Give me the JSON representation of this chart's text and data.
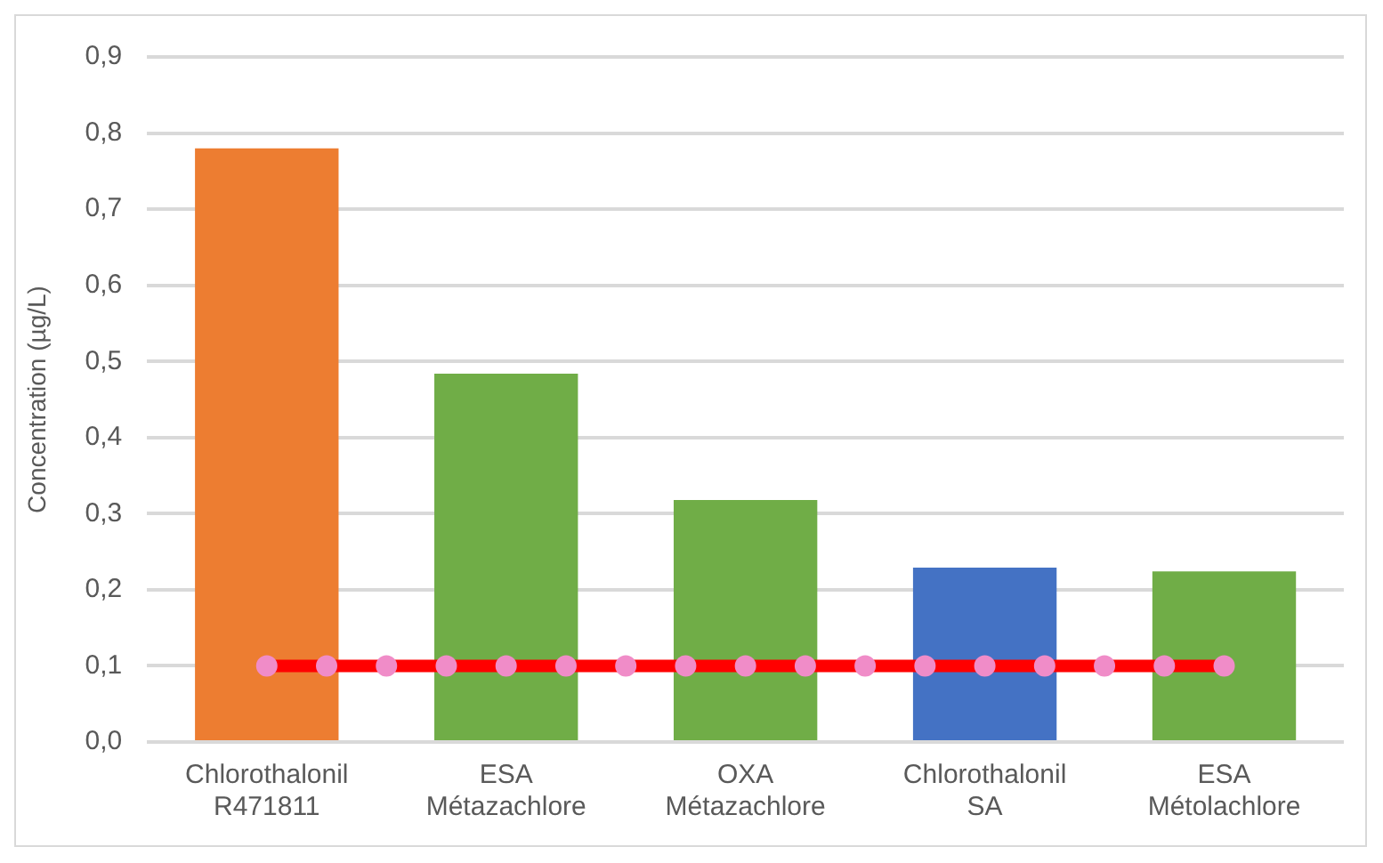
{
  "chart_data": {
    "type": "bar",
    "ylabel": "Concentration (µg/L)",
    "categories": [
      "Chlorothalonil R471811",
      "ESA Métazachlore",
      "OXA Métazachlore",
      "Chlorothalonil SA",
      "ESA Métolachlore"
    ],
    "values": [
      0.78,
      0.484,
      0.318,
      0.229,
      0.224
    ],
    "colors": [
      "#ed7d31",
      "#70ad47",
      "#70ad47",
      "#4472c4",
      "#70ad47"
    ],
    "ylim": [
      0,
      0.9
    ],
    "yticks": [
      {
        "value": 0,
        "label": "0,0"
      },
      {
        "value": 0.1,
        "label": "0,1"
      },
      {
        "value": 0.2,
        "label": "0,2"
      },
      {
        "value": 0.3,
        "label": "0,3"
      },
      {
        "value": 0.4,
        "label": "0,4"
      },
      {
        "value": 0.5,
        "label": "0,5"
      },
      {
        "value": 0.6,
        "label": "0,6"
      },
      {
        "value": 0.7,
        "label": "0,7"
      },
      {
        "value": 0.8,
        "label": "0,8"
      },
      {
        "value": 0.9,
        "label": "0,9"
      }
    ],
    "grid": "y",
    "ref_lines": [
      {
        "axis": "y",
        "value": 0.1,
        "color": "#ff0000",
        "line_style": "solid"
      },
      {
        "axis": "y",
        "value": 0.1,
        "color": "#f08cc8",
        "line_style": "dotted"
      }
    ]
  }
}
